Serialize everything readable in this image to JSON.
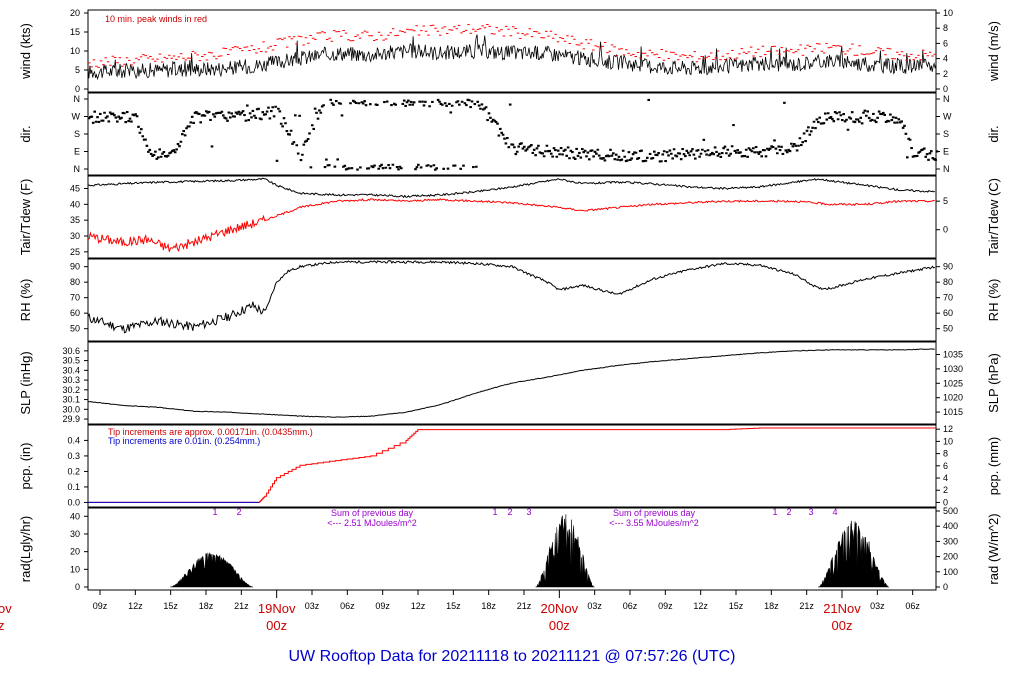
{
  "chart_data": [
    {
      "type": "line",
      "panel": "wind",
      "ylabel_left": "wind (kts)",
      "ylabel_right": "wind (m/s)",
      "annotation": "10 min. peak winds in red",
      "ylim_left": [
        0,
        20
      ],
      "ylim_right": [
        0,
        10
      ],
      "yticks_left": [
        "0",
        "5",
        "10",
        "15",
        "20"
      ],
      "yticks_right": [
        "0",
        "2",
        "4",
        "6",
        "8",
        "10"
      ],
      "series": [
        {
          "color": "#000000",
          "x": [
            0,
            6,
            12,
            15,
            18,
            21,
            24,
            27,
            30,
            33,
            36,
            39,
            42,
            45,
            48,
            51,
            54,
            57,
            60,
            63,
            66,
            69,
            72
          ],
          "y": [
            4.5,
            5,
            5.5,
            6.5,
            8,
            9.5,
            9,
            10,
            9.5,
            10,
            9.5,
            9.5,
            8,
            7,
            6,
            5.5,
            6,
            6.5,
            6.5,
            7.5,
            6.5,
            6,
            6
          ]
        },
        {
          "color": "#ff0000",
          "x": [
            0,
            6,
            12,
            15,
            18,
            21,
            24,
            27,
            30,
            33,
            36,
            39,
            42,
            45,
            48,
            51,
            54,
            57,
            60,
            63,
            66,
            69,
            72
          ],
          "y": [
            7,
            8,
            9.5,
            11,
            13,
            14,
            14,
            15,
            15.5,
            16,
            15,
            14,
            12,
            10,
            9,
            8.5,
            9,
            10,
            10,
            11,
            10,
            9,
            9
          ]
        }
      ]
    },
    {
      "type": "scatter",
      "panel": "dir",
      "ylabel_left": "dir.",
      "ylabel_right": "dir.",
      "ticks": [
        "N",
        "W",
        "S",
        "E",
        "N"
      ]
    },
    {
      "type": "line",
      "panel": "temperature",
      "ylabel_left": "Tair/Tdew (F)",
      "ylabel_right": "Tair/Tdew (C)",
      "ylim_left": [
        24,
        48
      ],
      "yticks_left": [
        "25",
        "30",
        "35",
        "40",
        "45"
      ],
      "yticks_right": [
        "0",
        "5"
      ],
      "series": [
        {
          "color": "#000000",
          "x": [
            0,
            6,
            12,
            15,
            16,
            18,
            21,
            24,
            27,
            30,
            33,
            36,
            40,
            42,
            45,
            48,
            51,
            54,
            57,
            60,
            62,
            66,
            69,
            72
          ],
          "y": [
            46,
            47,
            47.5,
            48,
            46,
            43.5,
            43,
            43,
            42.5,
            43,
            44,
            45.5,
            48,
            46.5,
            47,
            46.5,
            45.5,
            45,
            45.5,
            47,
            48,
            46,
            44.5,
            44
          ]
        },
        {
          "color": "#ff0000",
          "x": [
            0,
            3,
            5,
            7,
            9,
            12,
            15,
            18,
            21,
            24,
            27,
            30,
            33,
            36,
            40,
            42,
            45,
            48,
            51,
            54,
            57,
            60,
            63,
            66,
            69,
            72
          ],
          "y": [
            30,
            28,
            29,
            26,
            28,
            32,
            35,
            39,
            41,
            41.5,
            41,
            41.5,
            41,
            40.5,
            39,
            38,
            39,
            40,
            40.5,
            41,
            41,
            41,
            40,
            40,
            41,
            41
          ]
        }
      ]
    },
    {
      "type": "line",
      "panel": "rh",
      "ylabel_left": "RH (%)",
      "ylabel_right": "RH (%)",
      "yticks_left": [
        "50",
        "60",
        "70",
        "80",
        "90"
      ],
      "yticks_right": [
        "50",
        "60",
        "70",
        "80",
        "90"
      ],
      "series": [
        {
          "color": "#000000",
          "x": [
            0,
            3,
            6,
            9,
            12,
            14,
            15,
            16,
            17,
            18,
            21,
            24,
            27,
            30,
            33,
            36,
            39,
            40,
            42,
            45,
            48,
            51,
            54,
            57,
            60,
            62,
            63,
            66,
            69,
            72
          ],
          "y": [
            57,
            50,
            55,
            51,
            58,
            65,
            60,
            80,
            87,
            90,
            93,
            93,
            93,
            93,
            92,
            90,
            80,
            75,
            78,
            72,
            82,
            88,
            92,
            91,
            85,
            76,
            76,
            82,
            86,
            90
          ]
        }
      ]
    },
    {
      "type": "line",
      "panel": "pressure",
      "ylabel_left": "SLP (inHg)",
      "ylabel_right": "SLP (hPa)",
      "yticks_left": [
        "29.9",
        "30.0",
        "30.1",
        "30.2",
        "30.3",
        "30.4",
        "30.5",
        "30.6"
      ],
      "yticks_right": [
        "1015",
        "1020",
        "1025",
        "1030",
        "1035"
      ],
      "series": [
        {
          "color": "#000000",
          "x": [
            0,
            3,
            6,
            9,
            12,
            15,
            18,
            21,
            24,
            27,
            30,
            33,
            36,
            39,
            42,
            45,
            48,
            51,
            54,
            57,
            60,
            63,
            66,
            69,
            72
          ],
          "y": [
            30.08,
            30.04,
            30.02,
            29.98,
            29.97,
            29.95,
            29.93,
            29.92,
            29.93,
            29.97,
            30.05,
            30.17,
            30.27,
            30.33,
            30.4,
            30.45,
            30.49,
            30.52,
            30.55,
            30.58,
            30.6,
            30.61,
            30.61,
            30.61,
            30.62
          ]
        }
      ]
    },
    {
      "type": "line",
      "panel": "precipitation",
      "ylabel_left": "pcp. (in)",
      "ylabel_right": "pcp. (mm)",
      "notes": [
        "Tip increments are approx. 0.00171in. (0.0435mm.)",
        "Tip increments are 0.01in. (0.254mm.)"
      ],
      "yticks_left": [
        "0.0",
        "0.1",
        "0.2",
        "0.3",
        "0.4"
      ],
      "yticks_right": [
        "0",
        "2",
        "4",
        "6",
        "8",
        "10",
        "12"
      ],
      "series": [
        {
          "color": "#ff0000",
          "x": [
            0,
            14.5,
            15,
            16,
            18,
            21,
            24,
            27,
            28,
            30,
            33,
            36,
            42,
            48,
            54,
            57,
            60,
            66,
            72
          ],
          "y": [
            0,
            0,
            0.04,
            0.16,
            0.24,
            0.27,
            0.3,
            0.4,
            0.47,
            0.47,
            0.47,
            0.47,
            0.47,
            0.47,
            0.47,
            0.48,
            0.48,
            0.48,
            0.48
          ]
        },
        {
          "color": "#0000cc",
          "x": [
            0,
            14.5
          ],
          "y": [
            0,
            0
          ]
        }
      ]
    },
    {
      "type": "area",
      "panel": "radiation",
      "ylabel_left": "rad(Lgly/hr)",
      "ylabel_right": "rad (W/m^2)",
      "yticks_left": [
        "0",
        "10",
        "20",
        "30",
        "40"
      ],
      "yticks_right": [
        "0",
        "100",
        "200",
        "300",
        "400",
        "500"
      ],
      "annotations": [
        "1",
        "2",
        "Sum of previous day",
        "<--- 2.51 MJoules/m^2",
        "1",
        "2",
        "3",
        "Sum of previous day",
        "<--- 3.55 MJoules/m^2",
        "1",
        "2",
        "3",
        "4"
      ],
      "series": [
        {
          "color": "#000000",
          "x": [
            7,
            8,
            9,
            10,
            11,
            12,
            13,
            14,
            38,
            39,
            40,
            41,
            42,
            43,
            62,
            63,
            64,
            65,
            66,
            67,
            68
          ],
          "y": [
            0,
            4,
            12,
            20,
            15,
            8,
            2,
            0,
            0,
            8,
            40,
            35,
            12,
            0,
            0,
            5,
            35,
            30,
            22,
            5,
            0
          ]
        }
      ]
    }
  ],
  "x_axis": {
    "ticks": [
      "09z",
      "12z",
      "15z",
      "18z",
      "21z",
      "03z",
      "06z",
      "09z",
      "12z",
      "15z",
      "18z",
      "21z",
      "03z",
      "06z",
      "09z",
      "12z",
      "15z",
      "18z",
      "21z",
      "03z",
      "06z"
    ],
    "days": [
      {
        "day": "19Nov",
        "time": "00z"
      },
      {
        "day": "20Nov",
        "time": "00z"
      },
      {
        "day": "21Nov",
        "time": "00z"
      }
    ],
    "edge_day": "ov",
    "edge_time": "z"
  },
  "footer": "UW Rooftop Data for 20211118  to  20211121 @ 07:57:26  (UTC)"
}
